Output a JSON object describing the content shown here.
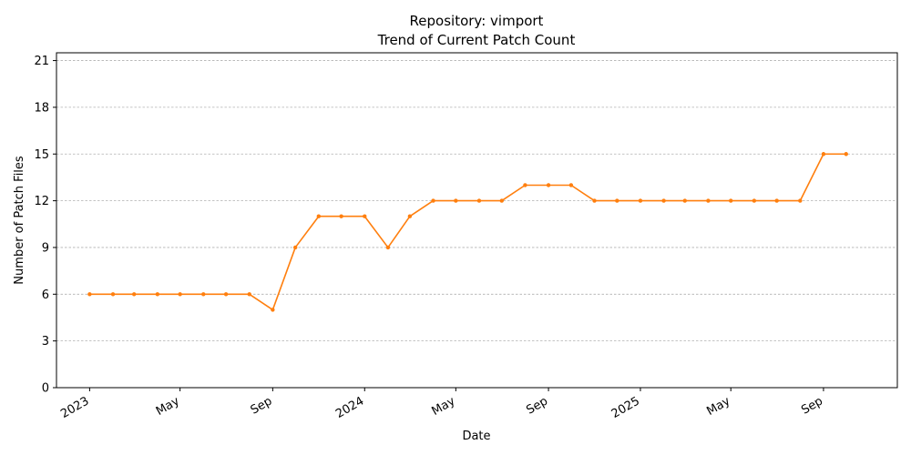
{
  "chart_data": {
    "type": "line",
    "title": "Repository: vimport",
    "subtitle": "Trend of Current Patch Count",
    "xlabel": "Date",
    "ylabel": "Number of Patch Files",
    "ylim": [
      0,
      21.5
    ],
    "yticks": [
      0,
      3,
      6,
      9,
      12,
      15,
      18,
      21
    ],
    "xlim": [
      "2022-11-18",
      "2025-12-08"
    ],
    "xticks": [
      {
        "date": "2023-01-01",
        "label": "2023"
      },
      {
        "date": "2023-05-01",
        "label": "May"
      },
      {
        "date": "2023-09-01",
        "label": "Sep"
      },
      {
        "date": "2024-01-01",
        "label": "2024"
      },
      {
        "date": "2024-05-01",
        "label": "May"
      },
      {
        "date": "2024-09-01",
        "label": "Sep"
      },
      {
        "date": "2025-01-01",
        "label": "2025"
      },
      {
        "date": "2025-05-01",
        "label": "May"
      },
      {
        "date": "2025-09-01",
        "label": "Sep"
      }
    ],
    "grid": "y-dashed",
    "color": "#ff7f0e",
    "series": [
      {
        "x": [
          "2023-01-01",
          "2023-02-01",
          "2023-03-01",
          "2023-04-01",
          "2023-05-01",
          "2023-06-01",
          "2023-07-01",
          "2023-08-01",
          "2023-09-01",
          "2023-10-01",
          "2023-11-01",
          "2023-12-01",
          "2024-01-01",
          "2024-02-01",
          "2024-03-01",
          "2024-04-01",
          "2024-05-01",
          "2024-06-01",
          "2024-07-01",
          "2024-08-01",
          "2024-09-01",
          "2024-10-01",
          "2024-11-01",
          "2024-12-01",
          "2025-01-01",
          "2025-02-01",
          "2025-03-01",
          "2025-04-01",
          "2025-05-01",
          "2025-06-01",
          "2025-07-01",
          "2025-08-01",
          "2025-09-01",
          "2025-10-01"
        ],
        "values": [
          6,
          6,
          6,
          6,
          6,
          6,
          6,
          6,
          5,
          9,
          11,
          11,
          11,
          9,
          11,
          12,
          12,
          12,
          12,
          13,
          13,
          13,
          12,
          12,
          12,
          12,
          12,
          12,
          12,
          12,
          12,
          12,
          15,
          15
        ]
      }
    ]
  }
}
